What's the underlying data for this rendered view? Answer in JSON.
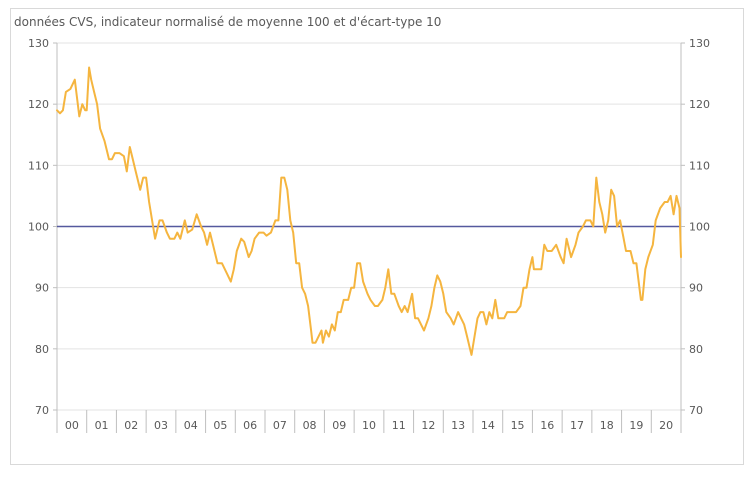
{
  "chart_data": {
    "type": "line",
    "subtitle": "données CVS, indicateur normalisé de moyenne 100 et d'écart-type 10",
    "ylim": [
      70,
      130
    ],
    "y_ticks": [
      70,
      80,
      90,
      100,
      110,
      120,
      130
    ],
    "x_ticks": [
      "00",
      "01",
      "02",
      "03",
      "04",
      "05",
      "06",
      "07",
      "08",
      "09",
      "10",
      "11",
      "12",
      "13",
      "14",
      "15",
      "16",
      "17",
      "18",
      "19",
      "20"
    ],
    "xlim": [
      2000,
      2021
    ],
    "grid": {
      "horizontal": true,
      "vertical": false
    },
    "reference_line": {
      "value": 100,
      "color": "#55599e"
    },
    "series": [
      {
        "color": "#f5b53f",
        "points": [
          [
            2000.0,
            119
          ],
          [
            2000.1,
            118.5
          ],
          [
            2000.2,
            119
          ],
          [
            2000.3,
            122
          ],
          [
            2000.45,
            122.5
          ],
          [
            2000.6,
            124
          ],
          [
            2000.75,
            118
          ],
          [
            2000.85,
            120
          ],
          [
            2000.95,
            119
          ],
          [
            2001.0,
            119
          ],
          [
            2001.08,
            126
          ],
          [
            2001.15,
            124
          ],
          [
            2001.25,
            122
          ],
          [
            2001.35,
            120
          ],
          [
            2001.45,
            116
          ],
          [
            2001.6,
            114
          ],
          [
            2001.75,
            111
          ],
          [
            2001.85,
            111
          ],
          [
            2001.95,
            112
          ],
          [
            2002.1,
            112
          ],
          [
            2002.25,
            111.5
          ],
          [
            2002.35,
            109
          ],
          [
            2002.45,
            113
          ],
          [
            2002.55,
            111
          ],
          [
            2002.65,
            109
          ],
          [
            2002.8,
            106
          ],
          [
            2002.9,
            108
          ],
          [
            2003.0,
            108
          ],
          [
            2003.1,
            104
          ],
          [
            2003.2,
            101
          ],
          [
            2003.3,
            98
          ],
          [
            2003.45,
            101
          ],
          [
            2003.55,
            101
          ],
          [
            2003.7,
            99
          ],
          [
            2003.8,
            98
          ],
          [
            2003.95,
            98
          ],
          [
            2004.05,
            99
          ],
          [
            2004.15,
            98
          ],
          [
            2004.3,
            101
          ],
          [
            2004.4,
            99
          ],
          [
            2004.55,
            99.5
          ],
          [
            2004.7,
            102
          ],
          [
            2004.85,
            100
          ],
          [
            2004.95,
            99
          ],
          [
            2005.05,
            97
          ],
          [
            2005.15,
            99
          ],
          [
            2005.25,
            97
          ],
          [
            2005.4,
            94
          ],
          [
            2005.55,
            94
          ],
          [
            2005.7,
            92.5
          ],
          [
            2005.85,
            91
          ],
          [
            2005.95,
            93
          ],
          [
            2006.05,
            96
          ],
          [
            2006.2,
            98
          ],
          [
            2006.3,
            97.5
          ],
          [
            2006.45,
            95
          ],
          [
            2006.55,
            96
          ],
          [
            2006.65,
            98
          ],
          [
            2006.8,
            99
          ],
          [
            2006.95,
            99
          ],
          [
            2007.05,
            98.5
          ],
          [
            2007.2,
            99
          ],
          [
            2007.35,
            101
          ],
          [
            2007.45,
            101
          ],
          [
            2007.55,
            108
          ],
          [
            2007.65,
            108
          ],
          [
            2007.75,
            106
          ],
          [
            2007.85,
            101
          ],
          [
            2007.95,
            99
          ],
          [
            2008.05,
            94
          ],
          [
            2008.15,
            94
          ],
          [
            2008.25,
            90
          ],
          [
            2008.35,
            89
          ],
          [
            2008.45,
            87
          ],
          [
            2008.55,
            83
          ],
          [
            2008.6,
            81
          ],
          [
            2008.7,
            81
          ],
          [
            2008.8,
            82
          ],
          [
            2008.9,
            83
          ],
          [
            2008.95,
            81
          ],
          [
            2009.05,
            83
          ],
          [
            2009.15,
            82
          ],
          [
            2009.25,
            84
          ],
          [
            2009.35,
            83
          ],
          [
            2009.45,
            86
          ],
          [
            2009.55,
            86
          ],
          [
            2009.65,
            88
          ],
          [
            2009.8,
            88
          ],
          [
            2009.9,
            90
          ],
          [
            2010.0,
            90
          ],
          [
            2010.1,
            94
          ],
          [
            2010.2,
            94
          ],
          [
            2010.3,
            91
          ],
          [
            2010.45,
            89
          ],
          [
            2010.55,
            88
          ],
          [
            2010.7,
            87
          ],
          [
            2010.8,
            87
          ],
          [
            2010.95,
            88
          ],
          [
            2011.05,
            90
          ],
          [
            2011.15,
            93
          ],
          [
            2011.25,
            89
          ],
          [
            2011.35,
            89
          ],
          [
            2011.5,
            87
          ],
          [
            2011.6,
            86
          ],
          [
            2011.7,
            87
          ],
          [
            2011.8,
            86
          ],
          [
            2011.9,
            88
          ],
          [
            2011.95,
            89
          ],
          [
            2012.05,
            85
          ],
          [
            2012.15,
            85
          ],
          [
            2012.25,
            84
          ],
          [
            2012.35,
            83
          ],
          [
            2012.5,
            85
          ],
          [
            2012.6,
            87
          ],
          [
            2012.7,
            90
          ],
          [
            2012.8,
            92
          ],
          [
            2012.9,
            91
          ],
          [
            2013.0,
            89
          ],
          [
            2013.1,
            86
          ],
          [
            2013.25,
            85
          ],
          [
            2013.35,
            84
          ],
          [
            2013.5,
            86
          ],
          [
            2013.6,
            85
          ],
          [
            2013.7,
            84
          ],
          [
            2013.8,
            82
          ],
          [
            2013.9,
            80
          ],
          [
            2013.95,
            79
          ],
          [
            2014.05,
            82
          ],
          [
            2014.15,
            85
          ],
          [
            2014.25,
            86
          ],
          [
            2014.35,
            86
          ],
          [
            2014.45,
            84
          ],
          [
            2014.55,
            86
          ],
          [
            2014.65,
            85
          ],
          [
            2014.75,
            88
          ],
          [
            2014.85,
            85
          ],
          [
            2014.95,
            85
          ],
          [
            2015.05,
            85
          ],
          [
            2015.15,
            86
          ],
          [
            2015.3,
            86
          ],
          [
            2015.45,
            86
          ],
          [
            2015.6,
            87
          ],
          [
            2015.7,
            90
          ],
          [
            2015.8,
            90
          ],
          [
            2015.9,
            93
          ],
          [
            2016.0,
            95
          ],
          [
            2016.05,
            93
          ],
          [
            2016.15,
            93
          ],
          [
            2016.3,
            93
          ],
          [
            2016.4,
            97
          ],
          [
            2016.5,
            96
          ],
          [
            2016.65,
            96
          ],
          [
            2016.8,
            97
          ],
          [
            2016.95,
            95
          ],
          [
            2017.05,
            94
          ],
          [
            2017.15,
            98
          ],
          [
            2017.3,
            95
          ],
          [
            2017.45,
            97
          ],
          [
            2017.55,
            99
          ],
          [
            2017.7,
            100
          ],
          [
            2017.8,
            101
          ],
          [
            2017.95,
            101
          ],
          [
            2018.05,
            100
          ],
          [
            2018.15,
            108
          ],
          [
            2018.25,
            104
          ],
          [
            2018.35,
            102
          ],
          [
            2018.45,
            99
          ],
          [
            2018.55,
            101
          ],
          [
            2018.65,
            106
          ],
          [
            2018.75,
            105
          ],
          [
            2018.85,
            100
          ],
          [
            2018.95,
            101
          ],
          [
            2019.05,
            98.5
          ],
          [
            2019.15,
            96
          ],
          [
            2019.3,
            96
          ],
          [
            2019.4,
            94
          ],
          [
            2019.5,
            94
          ],
          [
            2019.65,
            88
          ],
          [
            2019.7,
            88
          ],
          [
            2019.8,
            93
          ],
          [
            2019.9,
            95
          ],
          [
            2020.05,
            97
          ],
          [
            2020.15,
            101
          ],
          [
            2020.3,
            103
          ],
          [
            2020.45,
            104
          ],
          [
            2020.55,
            104
          ],
          [
            2020.65,
            105
          ],
          [
            2020.75,
            102
          ],
          [
            2020.85,
            105
          ],
          [
            2020.95,
            103
          ],
          [
            2021.0,
            95
          ]
        ]
      }
    ]
  }
}
